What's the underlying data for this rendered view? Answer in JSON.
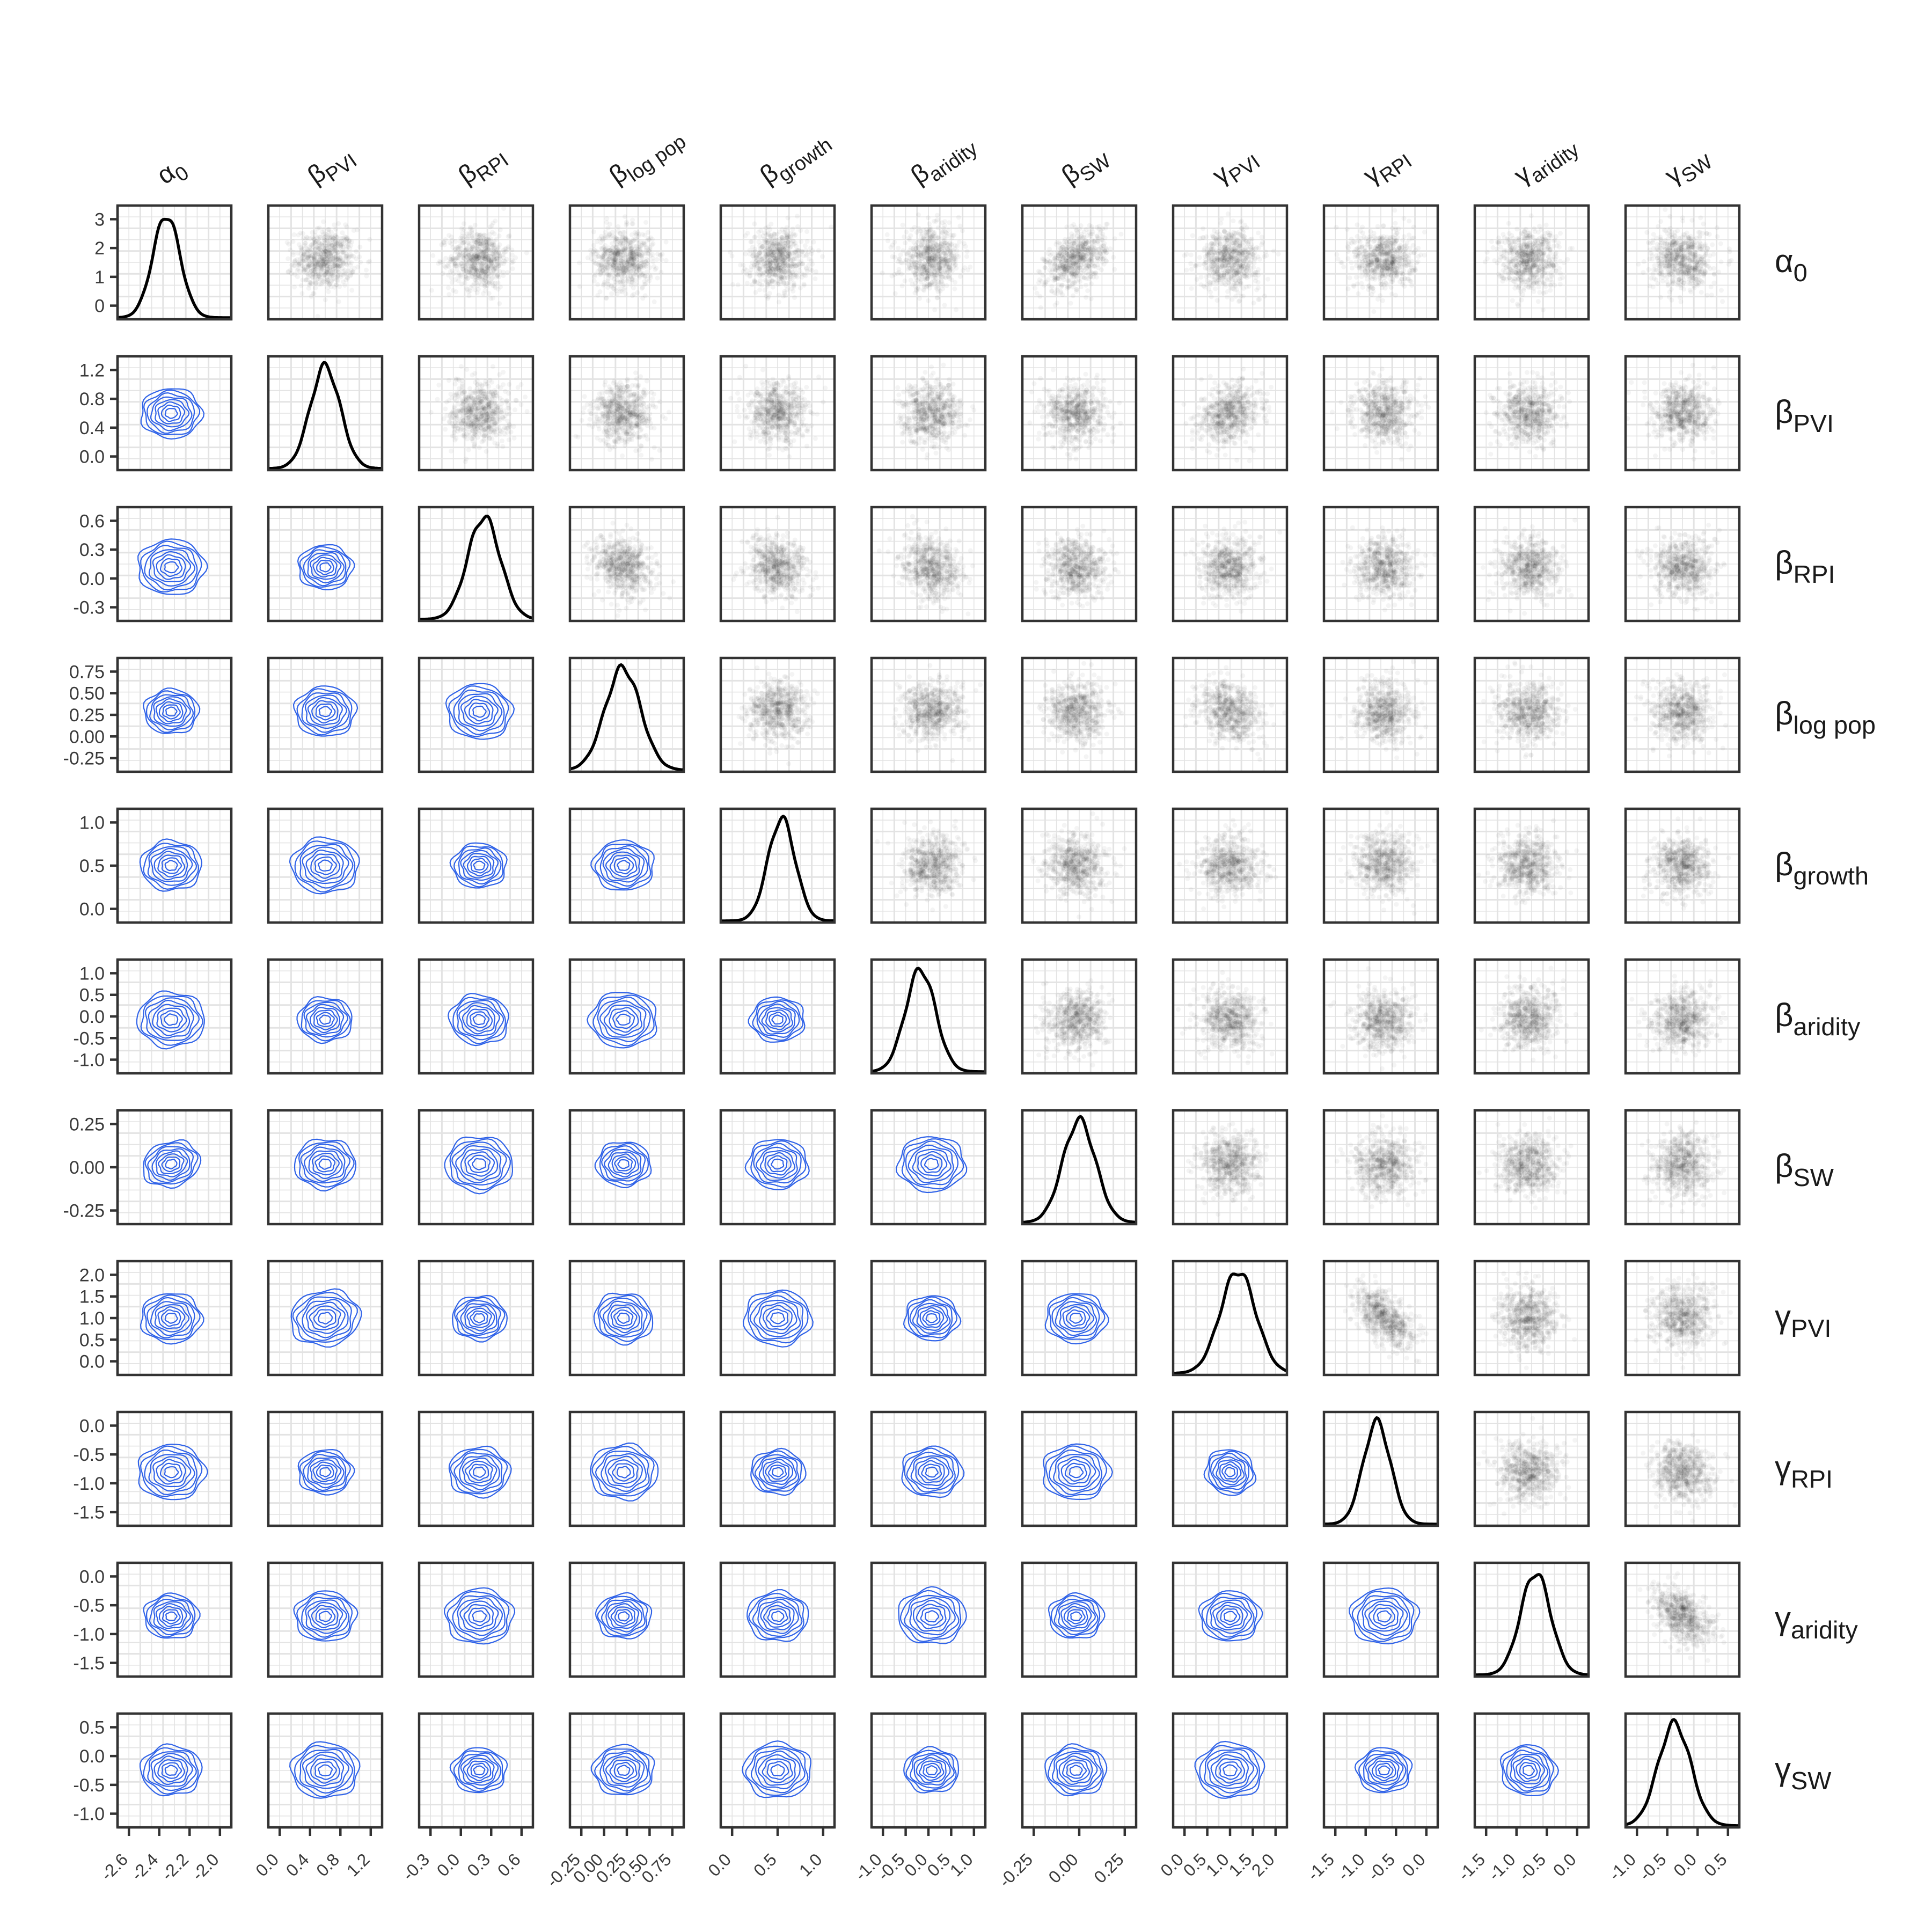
{
  "chart_data": {
    "type": "scatter",
    "layout": "pairs-matrix",
    "panels": {
      "diagonal": "density",
      "upper": "scatter",
      "lower": "contour"
    },
    "colors": {
      "density": "#000000",
      "scatter": "#222222",
      "contour": "#2f62e8",
      "grid": "#e3e3e3",
      "frame": "#333333"
    },
    "variables": [
      {
        "id": "alpha0",
        "sym": "α",
        "sub": "0",
        "x_ticks": [
          "-2.6",
          "-2.4",
          "-2.2",
          "-2.0"
        ],
        "y_ticks": [],
        "mean": -2.35,
        "sd": 0.1
      },
      {
        "id": "beta_pvi",
        "sym": "β",
        "sub": "PVI",
        "x_ticks": [
          "0.0",
          "0.4",
          "0.8",
          "1.2"
        ],
        "y_ticks": [
          "1.2",
          "0.8",
          "0.4",
          "0.0"
        ],
        "mean": 0.5,
        "sd": 0.18
      },
      {
        "id": "beta_rpi",
        "sym": "β",
        "sub": "RPI",
        "x_ticks": [
          "-0.3",
          "0.0",
          "0.3",
          "0.6"
        ],
        "y_ticks": [
          "0.6",
          "0.3",
          "0.0",
          "-0.3"
        ],
        "mean": 0.05,
        "sd": 0.14
      },
      {
        "id": "beta_logpop",
        "sym": "β",
        "sub": "log pop",
        "x_ticks": [
          "-0.25",
          "0.00",
          "0.25",
          "0.50",
          "0.75"
        ],
        "y_ticks": [
          "0.75",
          "0.50",
          "0.25",
          "0.00",
          "-0.25"
        ],
        "mean": 0.35,
        "sd": 0.15
      },
      {
        "id": "beta_growth",
        "sym": "β",
        "sub": "growth",
        "x_ticks": [
          "0.0",
          "0.5",
          "1.0"
        ],
        "y_ticks": [
          "1.0",
          "0.5",
          "0.0"
        ],
        "mean": 0.55,
        "sd": 0.18
      },
      {
        "id": "beta_aridity",
        "sym": "β",
        "sub": "aridity",
        "x_ticks": [
          "-1.0",
          "-0.5",
          "0.0",
          "0.5",
          "1.0"
        ],
        "y_ticks": [
          "1.0",
          "0.5",
          "0.0",
          "-0.5",
          "-1.0"
        ],
        "mean": 0.0,
        "sd": 0.3
      },
      {
        "id": "beta_sw",
        "sym": "β",
        "sub": "SW",
        "x_ticks": [
          "-0.25",
          "0.00",
          "0.25"
        ],
        "y_ticks": [
          "0.25",
          "0.00",
          "-0.25"
        ],
        "mean": -0.05,
        "sd": 0.09
      },
      {
        "id": "gamma_pvi",
        "sym": "γ",
        "sub": "PVI",
        "x_ticks": [
          "0.0",
          "0.5",
          "1.0",
          "1.5",
          "2.0"
        ],
        "y_ticks": [
          "2.0",
          "1.5",
          "1.0",
          "0.5",
          "0.0"
        ],
        "mean": 1.15,
        "sd": 0.3
      },
      {
        "id": "gamma_rpi",
        "sym": "γ",
        "sub": "RPI",
        "x_ticks": [
          "-1.5",
          "-1.0",
          "-0.5",
          "0.0"
        ],
        "y_ticks": [
          "0.0",
          "-0.5",
          "-1.0",
          "-1.5"
        ],
        "mean": -0.75,
        "sd": 0.25
      },
      {
        "id": "gamma_aridity",
        "sym": "γ",
        "sub": "aridity",
        "x_ticks": [
          "-1.5",
          "-1.0",
          "-0.5",
          "0.0"
        ],
        "y_ticks": [
          "0.0",
          "-0.5",
          "-1.0",
          "-1.5"
        ],
        "mean": -0.75,
        "sd": 0.25
      },
      {
        "id": "gamma_sw",
        "sym": "γ",
        "sub": "SW",
        "x_ticks": [
          "-1.0",
          "-0.5",
          "0.0",
          "0.5"
        ],
        "y_ticks": [
          "0.5",
          "0.0",
          "-0.5",
          "-1.0"
        ],
        "mean": -0.45,
        "sd": 0.22
      }
    ],
    "diag_y_ticks": [
      "3",
      "2",
      "1",
      "0"
    ]
  }
}
